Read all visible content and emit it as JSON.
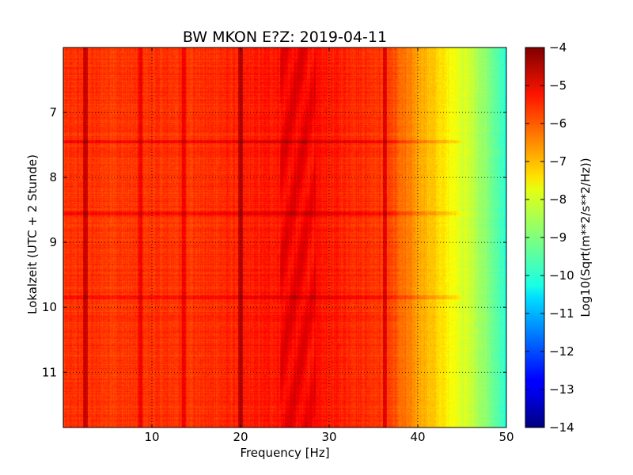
{
  "chart_data": {
    "type": "heatmap",
    "title": "BW MKON E?Z: 2019-04-11",
    "xlabel": "Frequency [Hz]",
    "ylabel": "Lokalzeit (UTC + 2 Stunde)",
    "xlim": [
      0,
      50
    ],
    "ylim": [
      6.0,
      11.85
    ],
    "y_inverted": true,
    "x_ticks": [
      10,
      20,
      30,
      40,
      50
    ],
    "y_ticks": [
      7,
      8,
      9,
      10,
      11
    ],
    "grid": true,
    "colormap": "jet",
    "colorbar": {
      "label": "Log10(Sqrt(m**2/s**2/Hz))",
      "range": [
        -14,
        -4
      ],
      "ticks": [
        -4,
        -5,
        -6,
        -7,
        -8,
        -9,
        -10,
        -11,
        -12,
        -13,
        -14
      ]
    },
    "x_profile_hz": [
      0,
      2,
      5,
      10,
      15,
      20,
      25,
      30,
      35,
      37,
      38,
      40,
      42,
      44,
      46,
      48,
      50
    ],
    "level_profile": [
      -5.8,
      -5.7,
      -5.8,
      -5.75,
      -5.75,
      -5.6,
      -5.4,
      -5.5,
      -5.7,
      -5.9,
      -6.3,
      -6.8,
      -7.3,
      -7.8,
      -8.3,
      -9.0,
      -9.9
    ],
    "dark_features": [
      {
        "kind": "vertical_line",
        "x_hz": 2.5,
        "strength": 0.9
      },
      {
        "kind": "vertical_line",
        "x_hz": 8.7,
        "strength": 0.6
      },
      {
        "kind": "vertical_line",
        "x_hz": 13.6,
        "strength": 0.6
      },
      {
        "kind": "vertical_line",
        "x_hz": 20.0,
        "strength": 0.9
      },
      {
        "kind": "vertical_band",
        "x_from_hz": 24.5,
        "x_to_hz": 28.5,
        "strength": 0.5
      },
      {
        "kind": "vertical_line",
        "x_hz": 36.3,
        "strength": 0.8
      },
      {
        "kind": "horizontal_line",
        "y_time": 7.45,
        "strength": 0.5
      },
      {
        "kind": "horizontal_line",
        "y_time": 8.55,
        "strength": 0.4
      },
      {
        "kind": "horizontal_line",
        "y_time": 9.85,
        "strength": 0.5
      }
    ]
  }
}
